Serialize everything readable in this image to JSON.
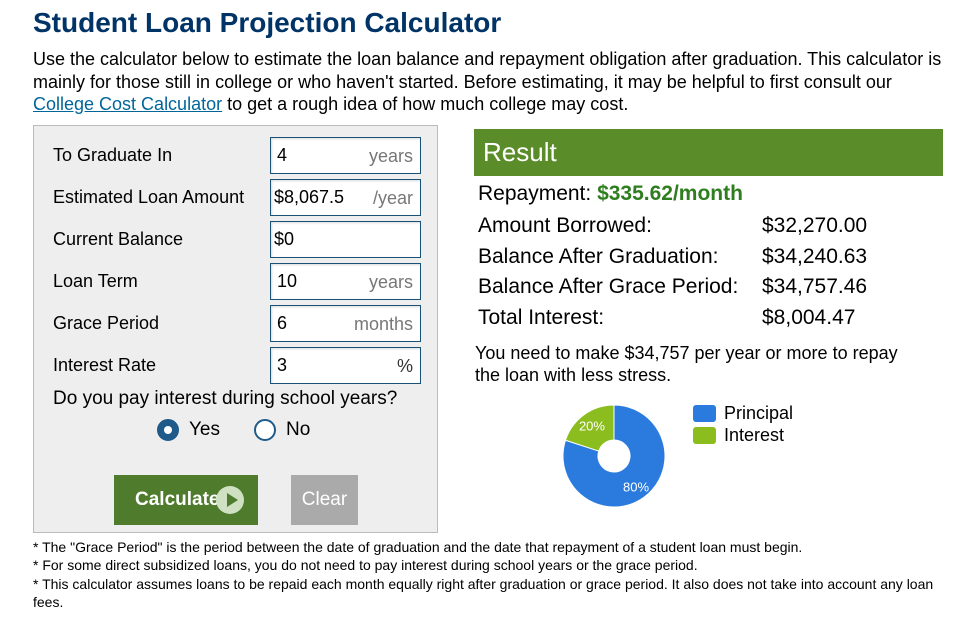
{
  "title": "Student Loan Projection Calculator",
  "intro": {
    "text_before": "Use the calculator below to estimate the loan balance and repayment obligation after graduation. This calculator is mainly for those still in college or who haven't started. Before estimating, it may be helpful to first consult our ",
    "link": "College Cost Calculator",
    "text_after": " to get a rough idea of how much college may cost."
  },
  "form": {
    "fields": [
      {
        "label": "To Graduate In",
        "value": "4",
        "unit": "years"
      },
      {
        "label": "Estimated Loan Amount",
        "value": "$8,067.5",
        "unit": "/year"
      },
      {
        "label": "Current Balance",
        "value": "$0",
        "unit": ""
      },
      {
        "label": "Loan Term",
        "value": "10",
        "unit": "years"
      },
      {
        "label": "Grace Period",
        "value": "6",
        "unit": "months"
      },
      {
        "label": "Interest Rate",
        "value": "3",
        "unit": "%"
      }
    ],
    "question": "Do you pay interest during school years?",
    "options": [
      {
        "label": "Yes",
        "checked": true
      },
      {
        "label": "No",
        "checked": false
      }
    ],
    "calculate_label": "Calculate",
    "clear_label": "Clear"
  },
  "result": {
    "heading": "Result",
    "repayment_label": "Repayment: ",
    "repayment_value": "$335.62/month",
    "rows": [
      {
        "label": "Amount Borrowed:",
        "value": "$32,270.00"
      },
      {
        "label": "Balance After Graduation:",
        "value": "$34,240.63"
      },
      {
        "label": "Balance After Grace Period:",
        "value": "$34,757.46"
      },
      {
        "label": "Total Interest:",
        "value": "$8,004.47"
      }
    ],
    "stress_text": "You need to make $34,757 per year or more to repay the loan with less stress."
  },
  "chart_data": {
    "type": "pie",
    "donut": true,
    "categories": [
      "Principal",
      "Interest"
    ],
    "values": [
      80,
      20
    ],
    "labels": [
      "80%",
      "20%"
    ],
    "colors": [
      "#2b7bde",
      "#8bbd1f"
    ],
    "legend": "right"
  },
  "colors": {
    "title": "#003366",
    "result_header": "#5b8c2a",
    "calculate_button": "#4e7c2c",
    "clear_button": "#aaaaaa",
    "repayment_value": "#2e7d1e"
  },
  "notes": [
    "* The \"Grace Period\" is the period between the date of graduation and the date that repayment of a student loan must begin.",
    "* For some direct subsidized loans, you do not need to pay interest during school years or the grace period.",
    "* This calculator assumes loans to be repaid each month equally right after graduation or grace period. It also does not take into account any loan fees."
  ]
}
